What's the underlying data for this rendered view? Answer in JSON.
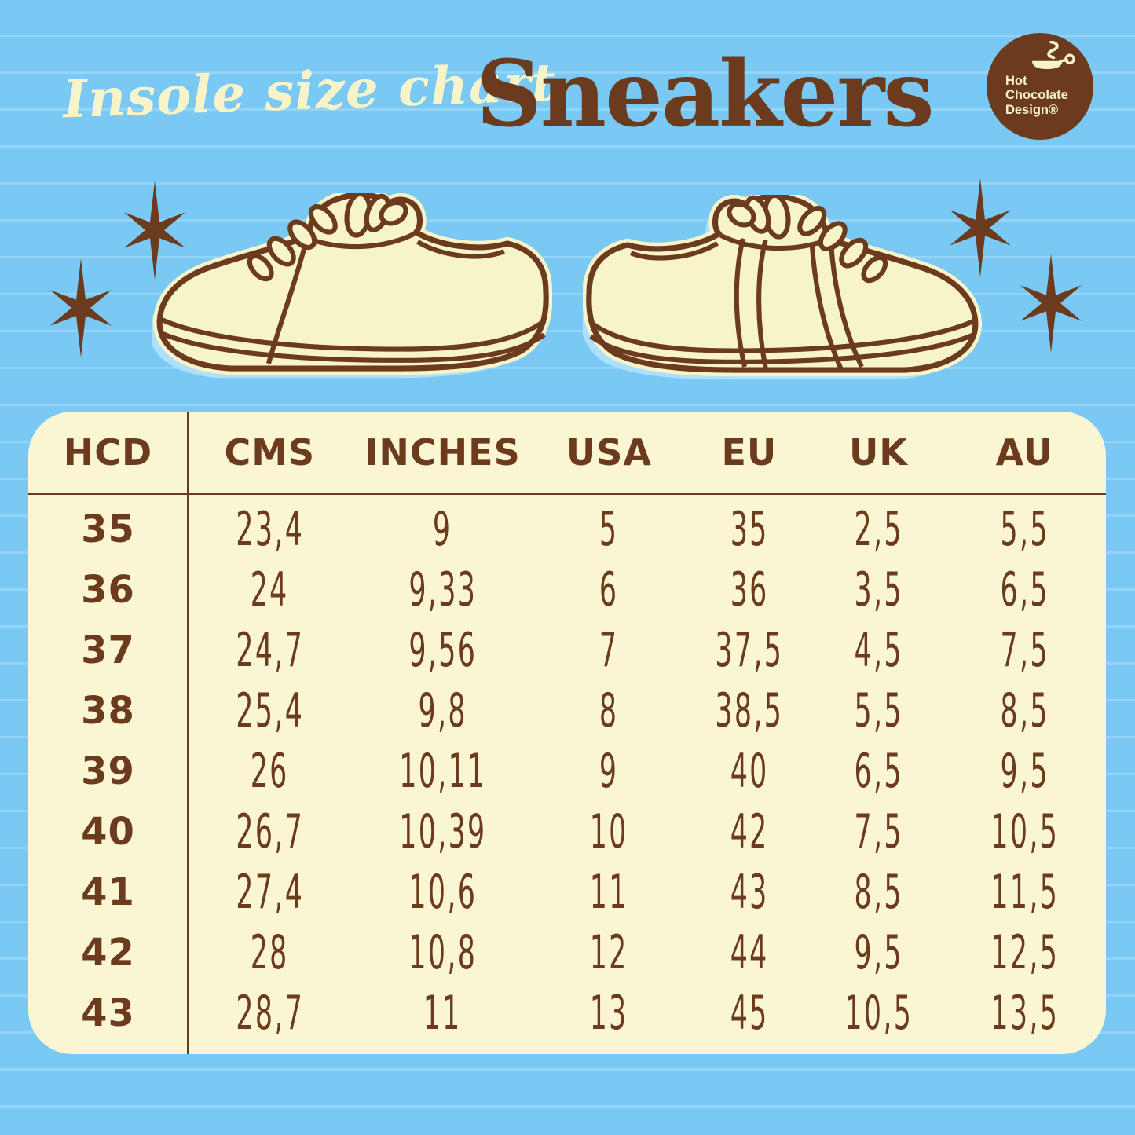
{
  "colors": {
    "background": "#7ac9f5",
    "ruled_line": "#94d4f8",
    "brown": "#6c3a1d",
    "cream": "#f8f4ca",
    "table_background": "#faf6d3",
    "shoe_shadow_blue": "#aee0fa"
  },
  "titles": {
    "script": "Insole size chart",
    "product": "Sneakers"
  },
  "logo": {
    "lines": [
      "Hot",
      "Chocolate",
      "Design®"
    ]
  },
  "table": {
    "columns": [
      "HCD",
      "CMS",
      "INCHES",
      "USA",
      "EU",
      "UK",
      "AU"
    ],
    "rows": [
      [
        "35",
        "23,4",
        "9",
        "5",
        "35",
        "2,5",
        "5,5"
      ],
      [
        "36",
        "24",
        "9,33",
        "6",
        "36",
        "3,5",
        "6,5"
      ],
      [
        "37",
        "24,7",
        "9,56",
        "7",
        "37,5",
        "4,5",
        "7,5"
      ],
      [
        "38",
        "25,4",
        "9,8",
        "8",
        "38,5",
        "5,5",
        "8,5"
      ],
      [
        "39",
        "26",
        "10,11",
        "9",
        "40",
        "6,5",
        "9,5"
      ],
      [
        "40",
        "26,7",
        "10,39",
        "10",
        "42",
        "7,5",
        "10,5"
      ],
      [
        "41",
        "27,4",
        "10,6",
        "11",
        "43",
        "8,5",
        "11,5"
      ],
      [
        "42",
        "28",
        "10,8",
        "12",
        "44",
        "9,5",
        "12,5"
      ],
      [
        "43",
        "28,7",
        "11",
        "13",
        "45",
        "10,5",
        "13,5"
      ]
    ]
  }
}
